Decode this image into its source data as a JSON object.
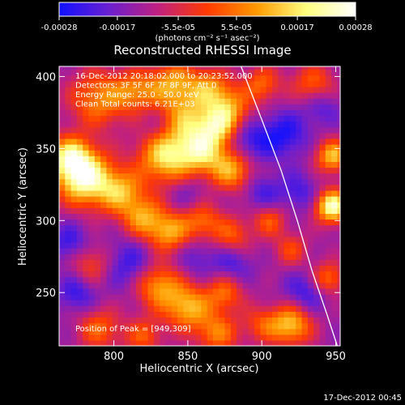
{
  "chart_data": {
    "type": "heatmap",
    "title": "Reconstructed RHESSI Image",
    "xlabel": "Heliocentric X (arcsec)",
    "ylabel": "Heliocentric Y (arcsec)",
    "xlim": [
      763,
      953
    ],
    "ylim": [
      213,
      407
    ],
    "x_ticks": [
      800,
      850,
      900,
      950
    ],
    "y_ticks": [
      250,
      300,
      350,
      400
    ],
    "colorbar": {
      "ticks": [
        "-0.00028",
        "-0.00017",
        "-5.5e-05",
        "5.5e-05",
        "0.00017",
        "0.00028"
      ],
      "tick_values": [
        -0.00028,
        -0.00017,
        -5.5e-05,
        5.5e-05,
        0.00017,
        0.00028
      ],
      "range": [
        -0.00028,
        0.00028
      ],
      "unit_label": "(photons cm⁻² s⁻¹ asec⁻²)",
      "colormap": [
        "#1010ff",
        "#6a1fd0",
        "#c02080",
        "#ff3a00",
        "#ff9a00",
        "#ffff80",
        "#ffffff"
      ]
    },
    "info_lines": [
      "16-Dec-2012 20:18:02.000 to 20:23:52.000",
      "Detectors: 3F 5F 6F 7F 8F 9F, Att 0",
      "Energy Range: 25.0 - 50.0 keV",
      "Clean    Total counts: 6.21E+03"
    ],
    "peak_text": "Position of Peak = [949,309]",
    "limb_curve": {
      "color": "#ffffff",
      "points": [
        [
          886,
          407
        ],
        [
          900,
          370
        ],
        [
          913,
          335
        ],
        [
          924,
          300
        ],
        [
          934,
          265
        ],
        [
          944,
          235
        ],
        [
          951,
          213
        ]
      ]
    },
    "blobs": [
      {
        "x": 790,
        "y": 385,
        "i": 0.55,
        "s": 14
      },
      {
        "x": 815,
        "y": 390,
        "i": 0.45,
        "s": 10
      },
      {
        "x": 840,
        "y": 395,
        "i": 0.6,
        "s": 12
      },
      {
        "x": 865,
        "y": 392,
        "i": 0.5,
        "s": 10
      },
      {
        "x": 878,
        "y": 378,
        "i": 0.55,
        "s": 10
      },
      {
        "x": 850,
        "y": 370,
        "i": 0.55,
        "s": 12
      },
      {
        "x": 835,
        "y": 345,
        "i": 0.8,
        "s": 13
      },
      {
        "x": 860,
        "y": 348,
        "i": 0.7,
        "s": 11
      },
      {
        "x": 880,
        "y": 335,
        "i": 0.6,
        "s": 10
      },
      {
        "x": 870,
        "y": 365,
        "i": 0.55,
        "s": 9
      },
      {
        "x": 780,
        "y": 330,
        "i": 1.0,
        "s": 13
      },
      {
        "x": 770,
        "y": 345,
        "i": 0.7,
        "s": 10
      },
      {
        "x": 805,
        "y": 320,
        "i": 0.6,
        "s": 11
      },
      {
        "x": 820,
        "y": 302,
        "i": 0.55,
        "s": 10
      },
      {
        "x": 838,
        "y": 292,
        "i": 0.6,
        "s": 10
      },
      {
        "x": 860,
        "y": 300,
        "i": 0.45,
        "s": 9
      },
      {
        "x": 880,
        "y": 290,
        "i": 0.4,
        "s": 9
      },
      {
        "x": 785,
        "y": 270,
        "i": 0.35,
        "s": 10
      },
      {
        "x": 830,
        "y": 255,
        "i": 0.6,
        "s": 11
      },
      {
        "x": 850,
        "y": 240,
        "i": 0.65,
        "s": 11
      },
      {
        "x": 875,
        "y": 250,
        "i": 0.45,
        "s": 9
      },
      {
        "x": 790,
        "y": 225,
        "i": 0.45,
        "s": 10
      },
      {
        "x": 820,
        "y": 220,
        "i": 0.4,
        "s": 9
      },
      {
        "x": 870,
        "y": 222,
        "i": 0.5,
        "s": 10
      },
      {
        "x": 900,
        "y": 228,
        "i": 0.35,
        "s": 9
      },
      {
        "x": 920,
        "y": 228,
        "i": 0.7,
        "s": 10
      },
      {
        "x": 948,
        "y": 310,
        "i": 1.0,
        "s": 8
      },
      {
        "x": 948,
        "y": 345,
        "i": 0.7,
        "s": 8
      },
      {
        "x": 935,
        "y": 395,
        "i": 0.45,
        "s": 10
      },
      {
        "x": 945,
        "y": 260,
        "i": 0.5,
        "s": 8
      },
      {
        "x": 905,
        "y": 300,
        "i": 0.4,
        "s": 8
      },
      {
        "x": 920,
        "y": 280,
        "i": 0.35,
        "s": 8
      },
      {
        "x": 900,
        "y": 395,
        "i": 0.45,
        "s": 9
      },
      {
        "x": 892,
        "y": 355,
        "i": -0.3,
        "s": 10
      },
      {
        "x": 915,
        "y": 360,
        "i": -0.35,
        "s": 11
      },
      {
        "x": 900,
        "y": 320,
        "i": -0.25,
        "s": 9
      },
      {
        "x": 810,
        "y": 270,
        "i": -0.3,
        "s": 12
      },
      {
        "x": 770,
        "y": 285,
        "i": -0.3,
        "s": 9
      },
      {
        "x": 855,
        "y": 275,
        "i": -0.2,
        "s": 10
      },
      {
        "x": 880,
        "y": 270,
        "i": -0.25,
        "s": 9
      },
      {
        "x": 775,
        "y": 250,
        "i": -0.3,
        "s": 9
      },
      {
        "x": 930,
        "y": 250,
        "i": -0.3,
        "s": 10
      },
      {
        "x": 925,
        "y": 320,
        "i": -0.25,
        "s": 9
      },
      {
        "x": 940,
        "y": 380,
        "i": -0.25,
        "s": 9
      },
      {
        "x": 830,
        "y": 365,
        "i": -0.15,
        "s": 9
      },
      {
        "x": 850,
        "y": 320,
        "i": -0.15,
        "s": 9
      }
    ]
  },
  "footer_timestamp": "17-Dec-2012 00:45"
}
